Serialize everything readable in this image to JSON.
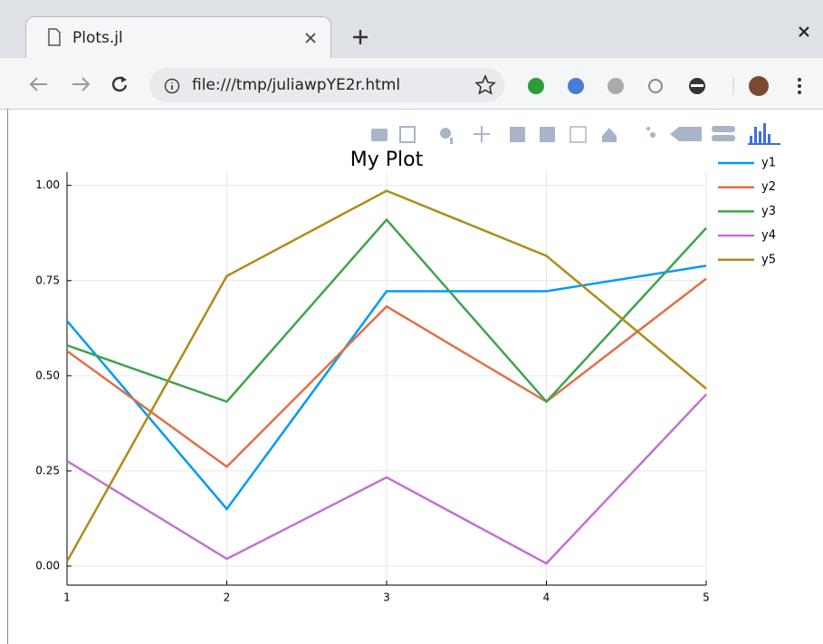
{
  "browser": {
    "tab_title": "Plots.jl",
    "url": "file:///tmp/juliawpYE2r.html"
  },
  "chart_data": {
    "type": "line",
    "title": "My Plot",
    "x": [
      1,
      2,
      3,
      4,
      5
    ],
    "series": [
      {
        "name": "y1",
        "color": "#009af9",
        "values": [
          0.644,
          0.15,
          0.722,
          0.722,
          0.789
        ]
      },
      {
        "name": "y2",
        "color": "#e26f46",
        "values": [
          0.565,
          0.261,
          0.682,
          0.432,
          0.755
        ]
      },
      {
        "name": "y3",
        "color": "#3ea44e",
        "values": [
          0.58,
          0.432,
          0.91,
          0.432,
          0.888
        ]
      },
      {
        "name": "y4",
        "color": "#c271d2",
        "values": [
          0.276,
          0.019,
          0.233,
          0.007,
          0.451
        ]
      },
      {
        "name": "y5",
        "color": "#ac8d18",
        "values": [
          0.012,
          0.762,
          0.986,
          0.815,
          0.466
        ]
      }
    ],
    "xlim": [
      1,
      5
    ],
    "xticks": [
      1,
      2,
      3,
      4,
      5
    ],
    "ylim": [
      -0.05,
      1.035
    ],
    "yticks": [
      {
        "value": 0,
        "label": "0.00"
      },
      {
        "value": 0.25,
        "label": "0.25"
      },
      {
        "value": 0.5,
        "label": "0.50"
      },
      {
        "value": 0.75,
        "label": "0.75"
      },
      {
        "value": 1,
        "label": "1.00"
      }
    ],
    "grid": true,
    "legend": "right"
  }
}
